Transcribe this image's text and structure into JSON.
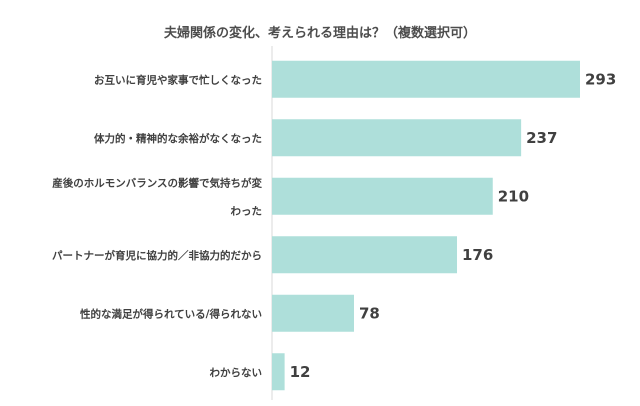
{
  "chart_data": {
    "type": "bar",
    "orientation": "horizontal",
    "title": "夫婦関係の変化、考えられる理由は？（複数選択可）",
    "categories": [
      [
        "お互いに育児や家事で忙しくなった"
      ],
      [
        "体力的・精神的な余裕がなくなった"
      ],
      [
        "産後のホルモンバランスの影響で気持ちが変",
        "わった"
      ],
      [
        "パートナーが育児に協力的／非協力的だから"
      ],
      [
        "性的な満足が得られている/得られない"
      ],
      [
        "わからない"
      ]
    ],
    "values": [
      293,
      237,
      210,
      176,
      78,
      12
    ],
    "value_labels": [
      "293",
      "237",
      "210",
      "176",
      "78",
      "12"
    ],
    "xlim": [
      0,
      293
    ],
    "bar_color": "#aedfda",
    "axis_color": "#d9d9d9",
    "grid": false,
    "legend": "none"
  }
}
